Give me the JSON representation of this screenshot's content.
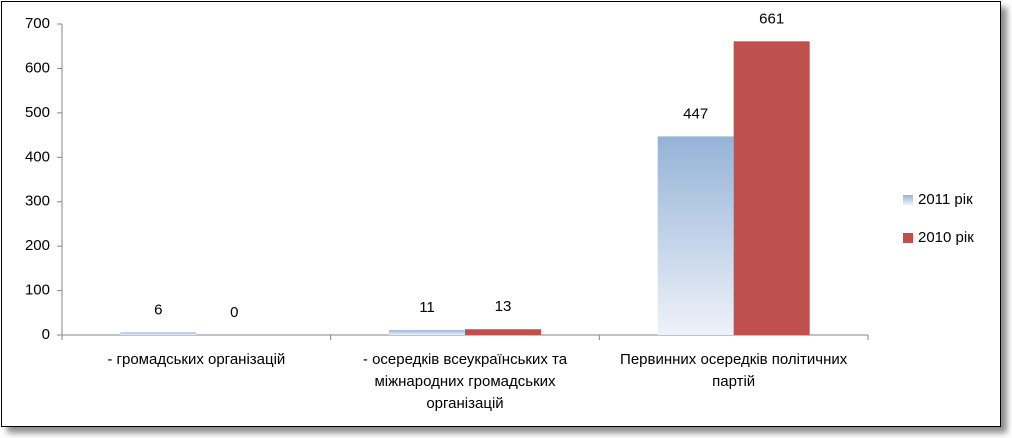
{
  "chart_data": {
    "type": "bar",
    "categories": [
      "- громадських організацій",
      "- осередків всеукраїнських та міжнародних громадських організацій",
      "Первинних осередків політичних партій"
    ],
    "series": [
      {
        "name": "2011 рік",
        "color": "#95b3d7",
        "fill_style": "gradient",
        "values": [
          6,
          11,
          447
        ]
      },
      {
        "name": "2010 рік",
        "color": "#c0504d",
        "values": [
          0,
          13,
          661
        ]
      }
    ],
    "ylim": [
      0,
      700
    ],
    "yticks": [
      0,
      100,
      200,
      300,
      400,
      500,
      600,
      700
    ],
    "grid": false,
    "legend": "right"
  }
}
